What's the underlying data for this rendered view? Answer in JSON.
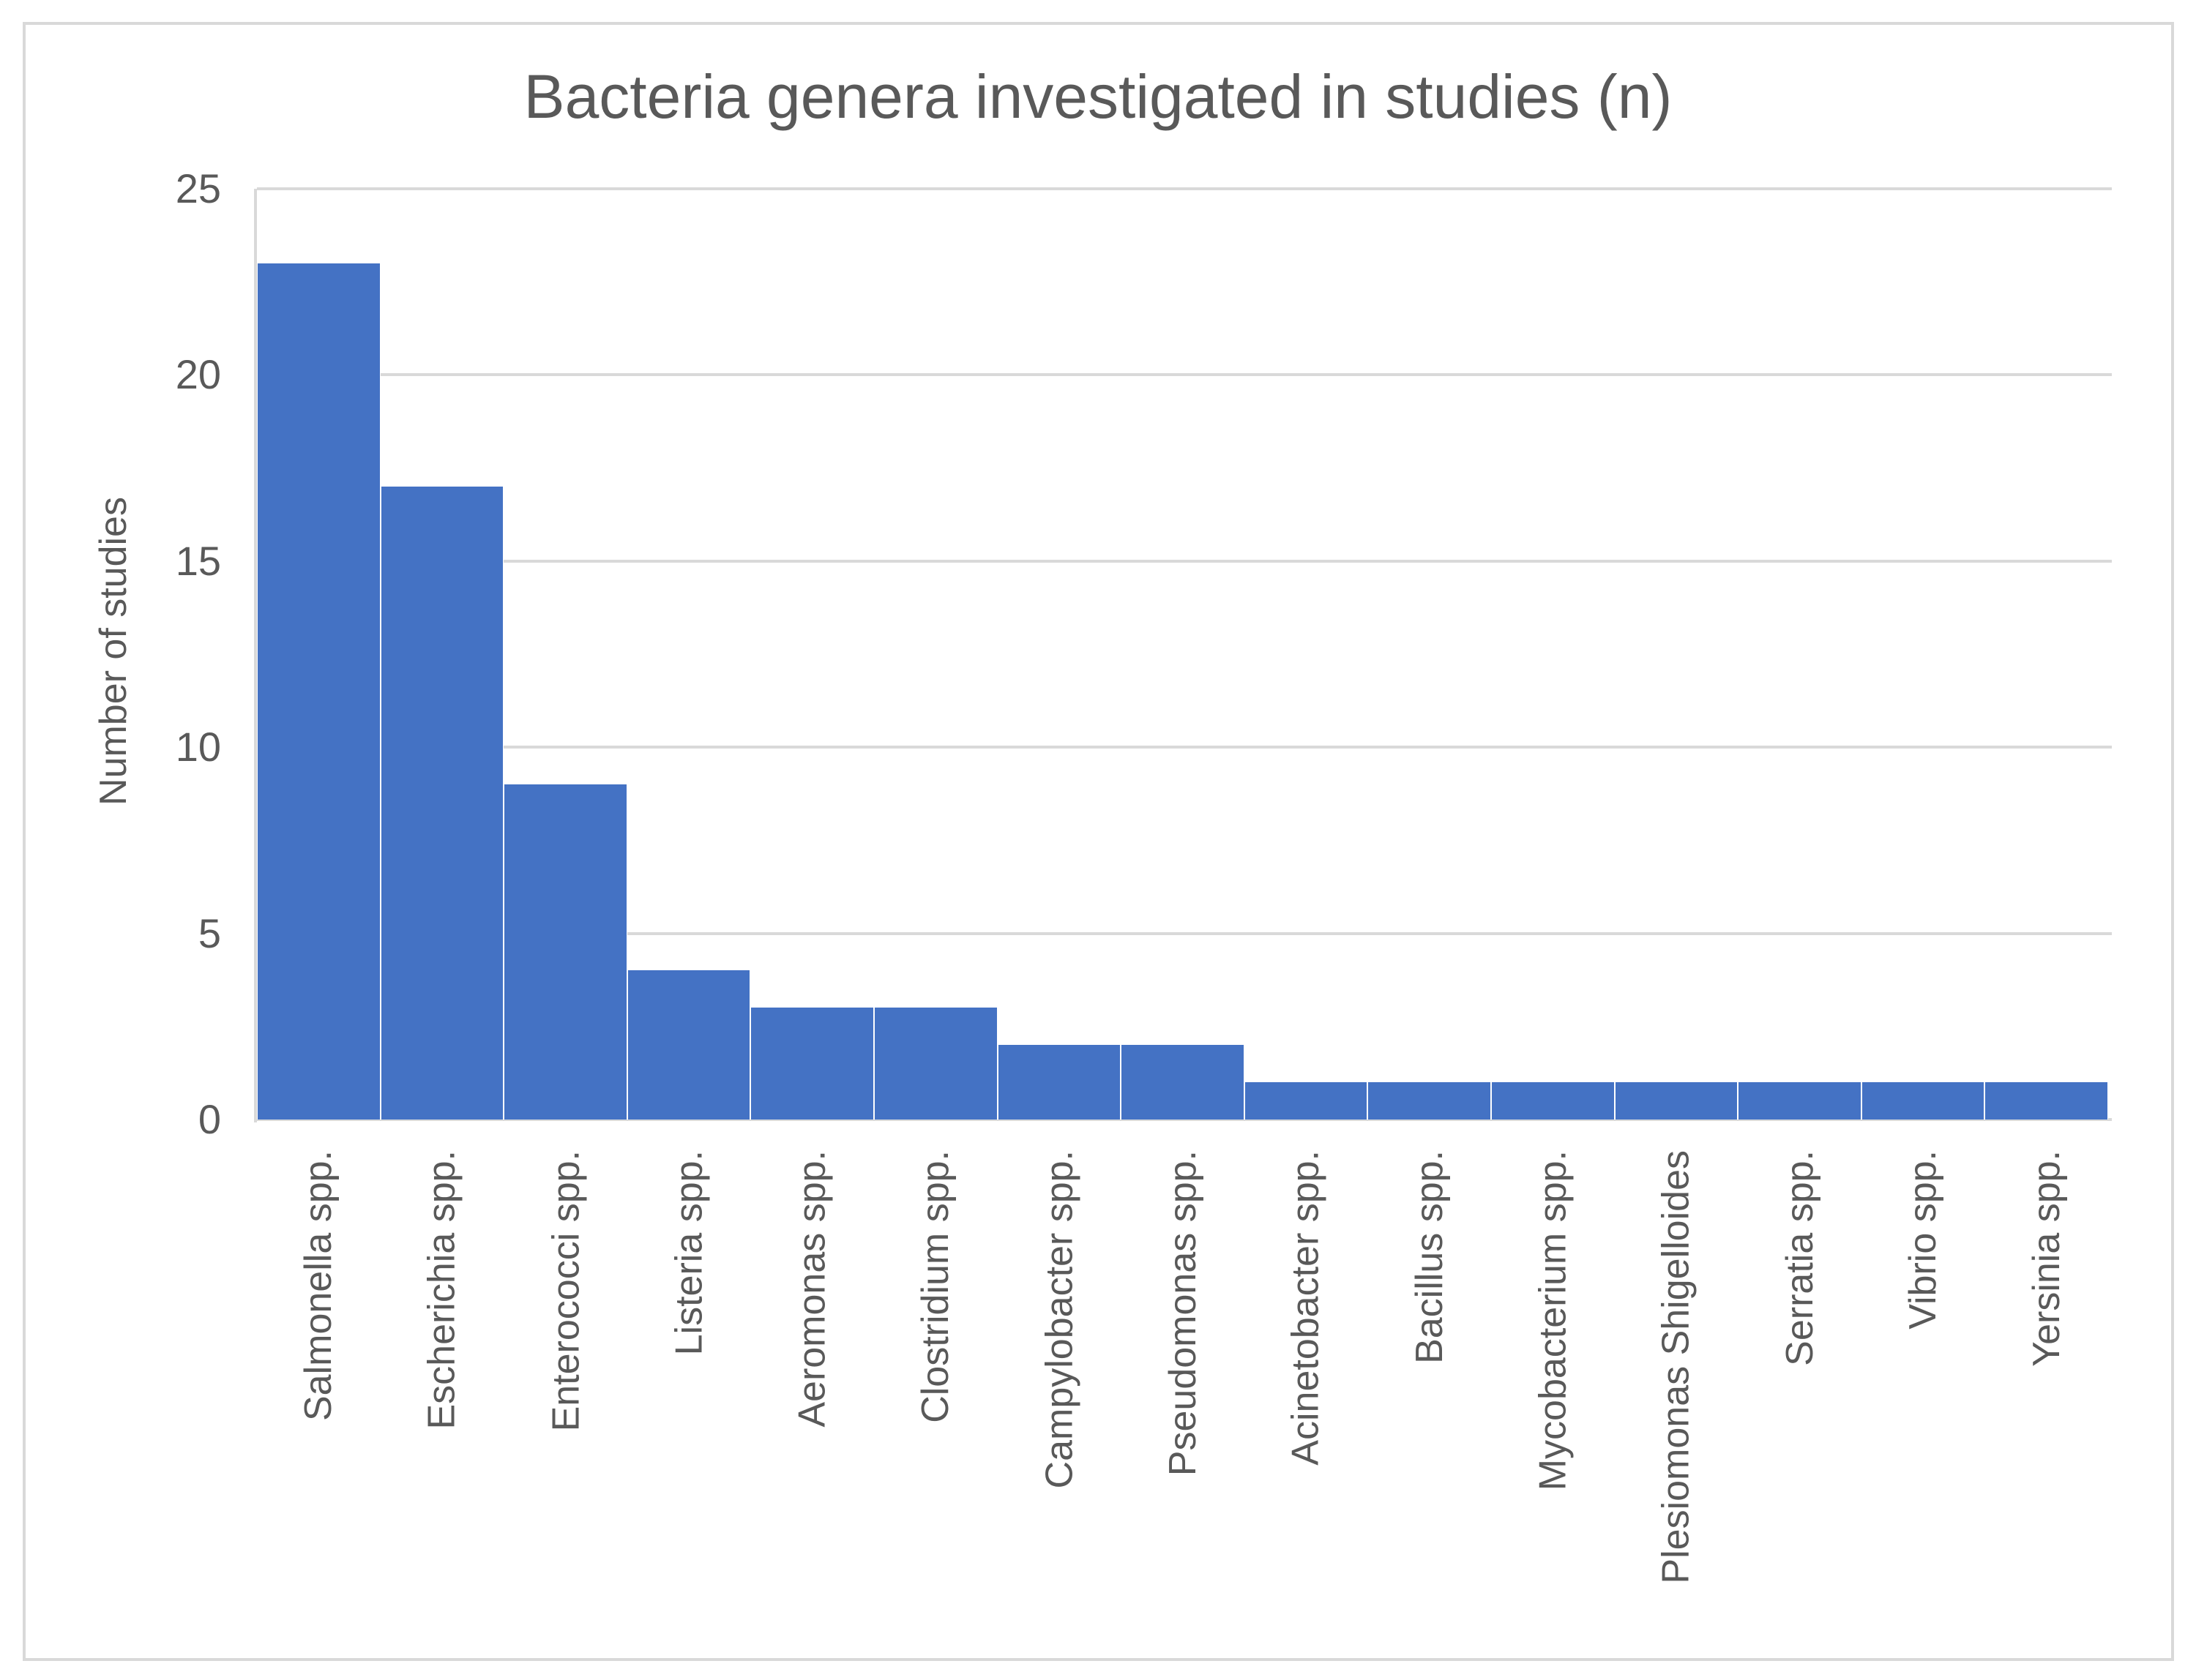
{
  "chart": {
    "title": "Bacteria genera investigated in studies (n)",
    "ylabel": "Number of studies",
    "bar_color": "#4472C4",
    "grid_color": "#D9D9D9",
    "text_color": "#595959",
    "yticks": [
      "0",
      "5",
      "10",
      "15",
      "20",
      "25"
    ]
  },
  "chart_data": {
    "type": "bar",
    "title": "Bacteria genera investigated in studies (n)",
    "xlabel": "",
    "ylabel": "Number of studies",
    "ylim": [
      0,
      25
    ],
    "yticks": [
      0,
      5,
      10,
      15,
      20,
      25
    ],
    "grid": true,
    "legend": null,
    "categories": [
      "Salmonella spp.",
      "Escherichia spp.",
      "Enterococci spp.",
      "Listeria spp.",
      "Aeromonas spp.",
      "Clostridium spp.",
      "Campylobacter spp.",
      "Pseudomonas spp.",
      "Acinetobacter spp.",
      "Bacillus spp.",
      "Mycobacterium spp.",
      "Plesiomonas Shigelloides",
      "Serratia spp.",
      "Vibrio spp.",
      "Yersinia spp."
    ],
    "values": [
      23,
      17,
      9,
      4,
      3,
      3,
      2,
      2,
      1,
      1,
      1,
      1,
      1,
      1,
      1
    ]
  }
}
